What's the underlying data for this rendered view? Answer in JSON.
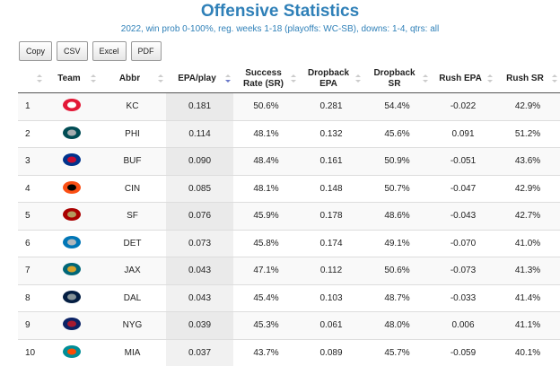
{
  "header": {
    "title": "Offensive Statistics",
    "subtitle": "2022, win prob 0-100%, reg. weeks 1-18 (playoffs: WC-SB), downs: 1-4, qtrs: all"
  },
  "buttons": [
    "Copy",
    "CSV",
    "Excel",
    "PDF"
  ],
  "table": {
    "columns": [
      "Team",
      "Abbr",
      "EPA/play",
      "Success Rate (SR)",
      "Dropback EPA",
      "Dropback SR",
      "Rush EPA",
      "Rush SR"
    ],
    "rows": [
      [
        1,
        "KC",
        "0.181",
        "50.6%",
        "0.281",
        "54.4%",
        "-0.022",
        "42.9%"
      ],
      [
        2,
        "PHI",
        "0.114",
        "48.1%",
        "0.132",
        "45.6%",
        "0.091",
        "51.2%"
      ],
      [
        3,
        "BUF",
        "0.090",
        "48.4%",
        "0.161",
        "50.9%",
        "-0.051",
        "43.6%"
      ],
      [
        4,
        "CIN",
        "0.085",
        "48.1%",
        "0.148",
        "50.7%",
        "-0.047",
        "42.9%"
      ],
      [
        5,
        "SF",
        "0.076",
        "45.9%",
        "0.178",
        "48.6%",
        "-0.043",
        "42.7%"
      ],
      [
        6,
        "DET",
        "0.073",
        "45.8%",
        "0.174",
        "49.1%",
        "-0.070",
        "41.0%"
      ],
      [
        7,
        "JAX",
        "0.043",
        "47.1%",
        "0.112",
        "50.6%",
        "-0.073",
        "41.3%"
      ],
      [
        8,
        "DAL",
        "0.043",
        "45.4%",
        "0.103",
        "48.7%",
        "-0.033",
        "41.4%"
      ],
      [
        9,
        "NYG",
        "0.039",
        "45.3%",
        "0.061",
        "48.0%",
        "0.006",
        "41.1%"
      ],
      [
        10,
        "MIA",
        "0.037",
        "43.7%",
        "0.089",
        "45.7%",
        "-0.059",
        "40.1%"
      ]
    ]
  }
}
